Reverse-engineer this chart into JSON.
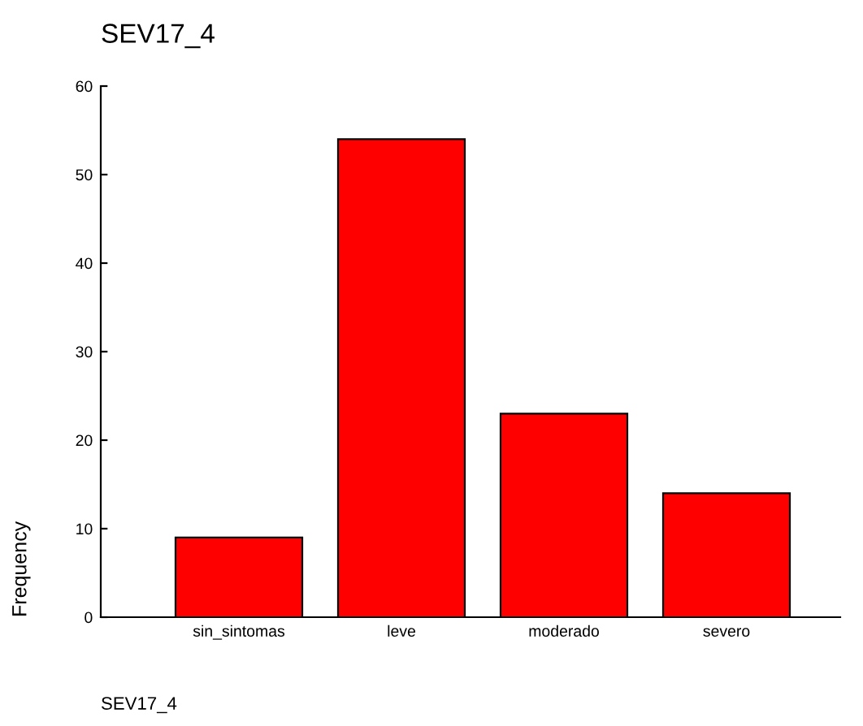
{
  "chart_data": {
    "type": "bar",
    "title": "SEV17_4",
    "xlabel": "SEV17_4",
    "ylabel": "Frequency",
    "categories": [
      "sin_sintomas",
      "leve",
      "moderado",
      "severo"
    ],
    "values": [
      9,
      54,
      23,
      14
    ],
    "color": "#ff0000",
    "ylim": [
      0,
      60
    ],
    "yticks": [
      0,
      10,
      20,
      30,
      40,
      50,
      60
    ],
    "grid": false,
    "legend": false
  }
}
